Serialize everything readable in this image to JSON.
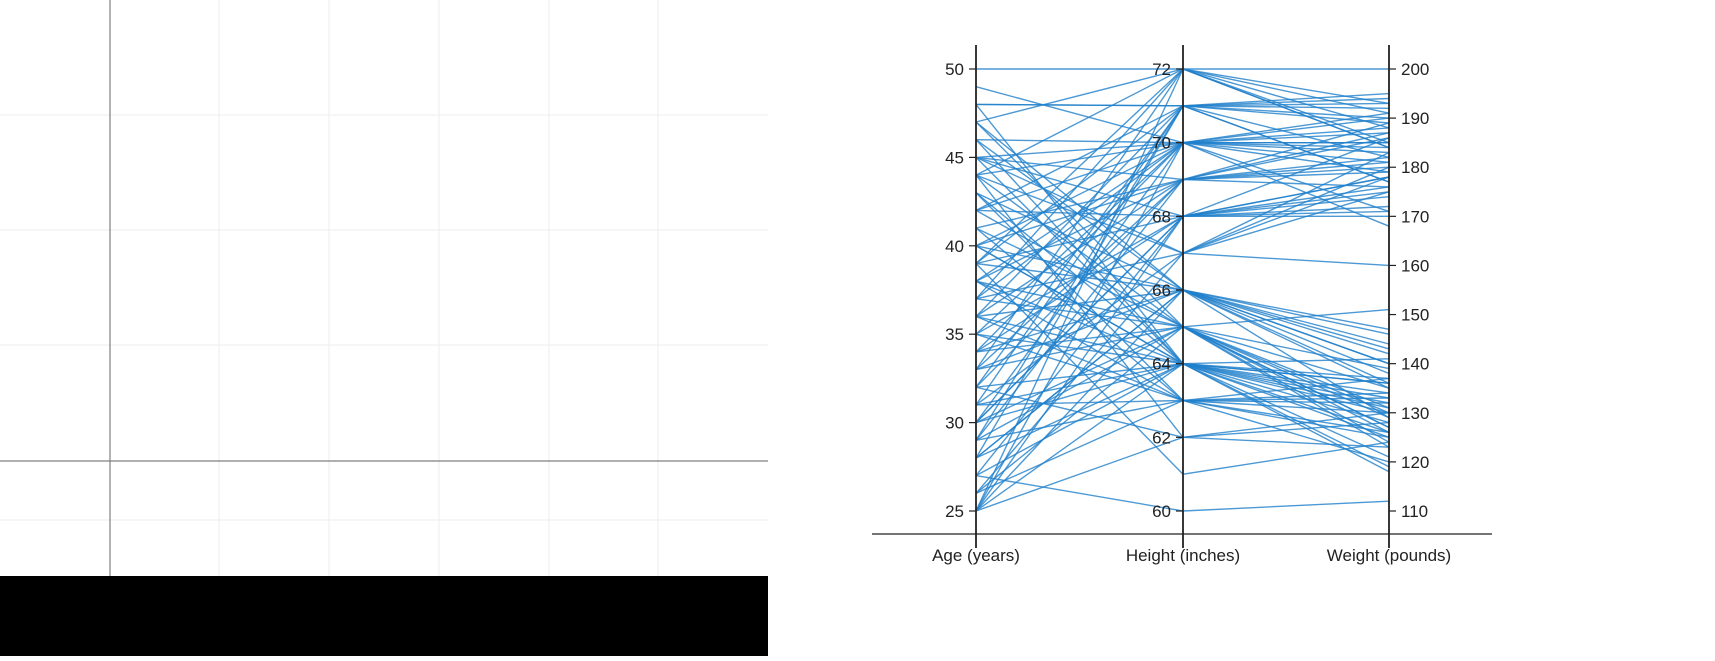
{
  "colors": {
    "line": "#1f7fcb",
    "axis": "#222222",
    "grid": "#eeeeee",
    "left_axis": "#808080",
    "bar": "#000000"
  },
  "chart_data": {
    "type": "parallel_coordinates",
    "axes": [
      {
        "name": "Age (years)",
        "range": [
          25,
          50
        ],
        "ticks": [
          25,
          30,
          35,
          40,
          45,
          50
        ],
        "tick_side": "left"
      },
      {
        "name": "Height (inches)",
        "range": [
          60,
          72
        ],
        "ticks": [
          60,
          62,
          64,
          66,
          68,
          70,
          72
        ],
        "tick_side": "left"
      },
      {
        "name": "Weight (pounds)",
        "range": [
          110,
          200
        ],
        "ticks": [
          110,
          120,
          130,
          140,
          150,
          160,
          170,
          180,
          190,
          200
        ],
        "tick_side": "right"
      }
    ],
    "records": [
      [
        50,
        72,
        200
      ],
      [
        49,
        70,
        187
      ],
      [
        48,
        71,
        193
      ],
      [
        48,
        71,
        189
      ],
      [
        47,
        72,
        184
      ],
      [
        47,
        66,
        136
      ],
      [
        46,
        64,
        128
      ],
      [
        46,
        70,
        191
      ],
      [
        45,
        67,
        183
      ],
      [
        45,
        70,
        185
      ],
      [
        45,
        68,
        172
      ],
      [
        44,
        62,
        130
      ],
      [
        44,
        70,
        181
      ],
      [
        44,
        67,
        175
      ],
      [
        43,
        66,
        142
      ],
      [
        43,
        63,
        120
      ],
      [
        42,
        71,
        190
      ],
      [
        42,
        68,
        176
      ],
      [
        41,
        65,
        151
      ],
      [
        41,
        69,
        186
      ],
      [
        40,
        64,
        134
      ],
      [
        40,
        70,
        168
      ],
      [
        40,
        66,
        140
      ],
      [
        39,
        71,
        177
      ],
      [
        39,
        61,
        124
      ],
      [
        39,
        68,
        178
      ],
      [
        38,
        65,
        131
      ],
      [
        38,
        69,
        180
      ],
      [
        38,
        63,
        126
      ],
      [
        37,
        70,
        183
      ],
      [
        37,
        67,
        160
      ],
      [
        36,
        64,
        125
      ],
      [
        36,
        71,
        195
      ],
      [
        36,
        66,
        147
      ],
      [
        35,
        68,
        170
      ],
      [
        35,
        63,
        133
      ],
      [
        34,
        70,
        188
      ],
      [
        34,
        65,
        139
      ],
      [
        33,
        69,
        182
      ],
      [
        33,
        66,
        144
      ],
      [
        32,
        62,
        128
      ],
      [
        32,
        71,
        194
      ],
      [
        31,
        67,
        178
      ],
      [
        31,
        64,
        121
      ],
      [
        30,
        70,
        185
      ],
      [
        30,
        65,
        135
      ],
      [
        30,
        68,
        171
      ],
      [
        29,
        63,
        132
      ],
      [
        29,
        69,
        187
      ],
      [
        28,
        66,
        138
      ],
      [
        28,
        71,
        192
      ],
      [
        28,
        64,
        126
      ],
      [
        27,
        68,
        175
      ],
      [
        27,
        60,
        112
      ],
      [
        26,
        67,
        180
      ],
      [
        26,
        65,
        130
      ],
      [
        25,
        72,
        184
      ],
      [
        25,
        70,
        190
      ],
      [
        25,
        66,
        140
      ],
      [
        25,
        62,
        123
      ],
      [
        25,
        64,
        137
      ],
      [
        25,
        68,
        178
      ],
      [
        48,
        64,
        118
      ],
      [
        47,
        65,
        127
      ],
      [
        46,
        66,
        135
      ],
      [
        45,
        64,
        130
      ],
      [
        44,
        65,
        123
      ],
      [
        43,
        64,
        136
      ],
      [
        42,
        65,
        129
      ],
      [
        41,
        63,
        125
      ],
      [
        40,
        64,
        132
      ],
      [
        39,
        66,
        143
      ],
      [
        38,
        64,
        131
      ],
      [
        37,
        65,
        126
      ],
      [
        36,
        63,
        134
      ],
      [
        35,
        64,
        141
      ],
      [
        34,
        66,
        129
      ],
      [
        33,
        65,
        124
      ],
      [
        32,
        64,
        136
      ],
      [
        31,
        63,
        130
      ],
      [
        30,
        64,
        133
      ],
      [
        29,
        65,
        127
      ],
      [
        28,
        66,
        146
      ],
      [
        27,
        64,
        119
      ],
      [
        26,
        63,
        137
      ],
      [
        45,
        69,
        176
      ],
      [
        44,
        72,
        188
      ],
      [
        42,
        70,
        184
      ],
      [
        40,
        69,
        179
      ],
      [
        38,
        70,
        171
      ],
      [
        36,
        69,
        189
      ],
      [
        34,
        68,
        174
      ],
      [
        32,
        69,
        181
      ],
      [
        30,
        68,
        186
      ],
      [
        29,
        71,
        182
      ],
      [
        31,
        71,
        177
      ],
      [
        33,
        72,
        193
      ],
      [
        35,
        70,
        179
      ],
      [
        37,
        72,
        191
      ],
      [
        39,
        72,
        185
      ]
    ]
  }
}
